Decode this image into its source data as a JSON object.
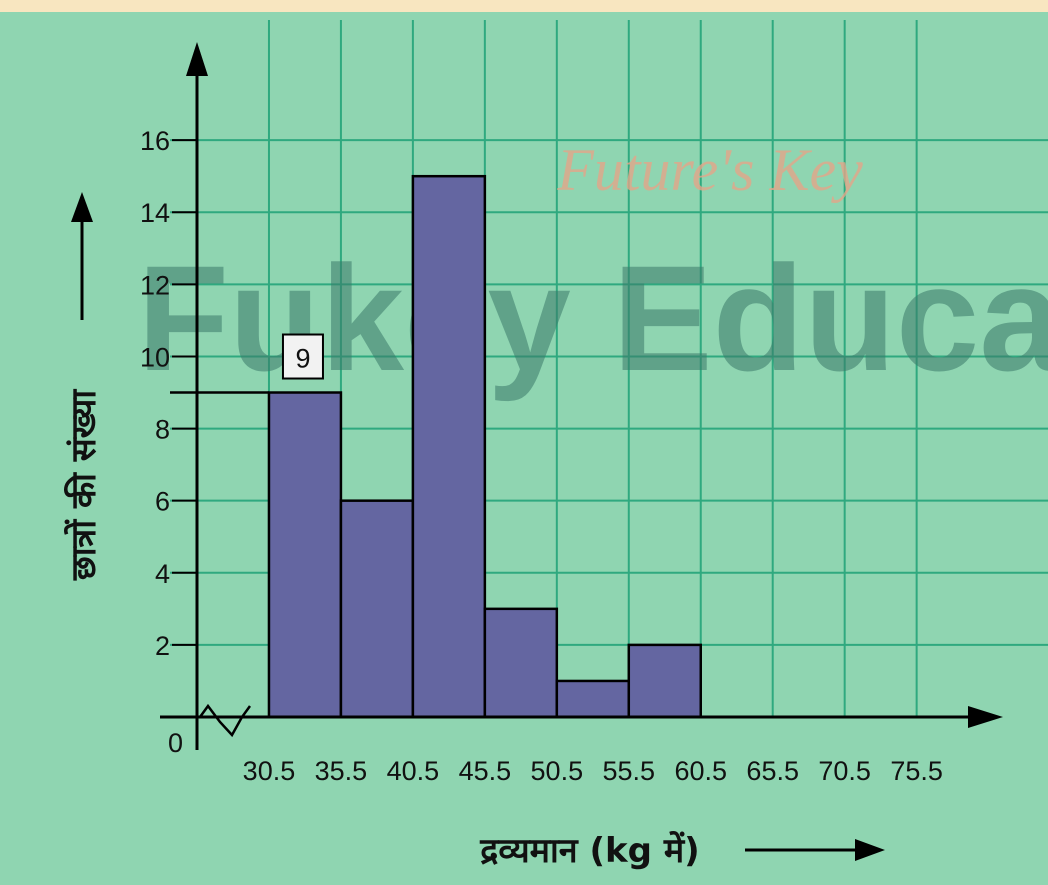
{
  "chart_data": {
    "type": "histogram",
    "bins": [
      30.5,
      35.5,
      40.5,
      45.5,
      50.5,
      55.5,
      60.5
    ],
    "values": [
      9,
      6,
      15,
      3,
      1,
      2
    ],
    "color": "#6466a1",
    "xlim": [
      25.5,
      81.5
    ],
    "ylim": [
      0,
      18.5
    ],
    "xticks": [
      30.5,
      35.5,
      40.5,
      45.5,
      50.5,
      55.5,
      60.5,
      65.5,
      70.5,
      75.5
    ],
    "yticks": [
      0,
      2,
      4,
      6,
      8,
      10,
      12,
      14,
      16
    ],
    "grid": true,
    "xlabel": "द्रव्यमान (kg में)",
    "ylabel": "छात्रों की संख्या",
    "annotation": 9,
    "watermarks": [
      "Future's Key",
      "Fukey Educa"
    ]
  }
}
